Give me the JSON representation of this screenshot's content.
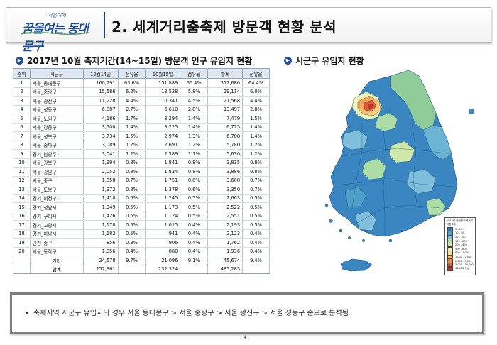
{
  "header": {
    "logo_sub": "서울이메",
    "logo_main": "꿈을여는 동대문구",
    "title": "2. 세계거리춤축제 방문객 현황 분석"
  },
  "left_section": {
    "title": "2017년 10월 축제기간(14~15일) 방문객 인구 유입지 현황"
  },
  "right_section": {
    "title": "시군구 유입지 현황"
  },
  "table": {
    "headers": [
      "순위",
      "시군구",
      "10월14일",
      "점유율",
      "10월15일",
      "점유율",
      "합계",
      "점유율"
    ],
    "rows": [
      [
        "1",
        "서울_동대문구",
        "160,791",
        "63.6%",
        "151,889",
        "65.4%",
        "312,680",
        "64.4%"
      ],
      [
        "2",
        "서울_중랑구",
        "15,586",
        "6.2%",
        "13,528",
        "5.8%",
        "29,114",
        "6.0%"
      ],
      [
        "3",
        "서울_광진구",
        "11,228",
        "4.4%",
        "10,341",
        "4.5%",
        "21,568",
        "4.4%"
      ],
      [
        "4",
        "서울_성동구",
        "6,887",
        "2.7%",
        "6,610",
        "2.8%",
        "13,497",
        "2.8%"
      ],
      [
        "5",
        "서울_노원구",
        "4,186",
        "1.7%",
        "3,294",
        "1.4%",
        "7,479",
        "1.5%"
      ],
      [
        "6",
        "서울_강동구",
        "3,500",
        "1.4%",
        "3,225",
        "1.4%",
        "6,725",
        "1.4%"
      ],
      [
        "7",
        "서울_성북구",
        "3,734",
        "1.5%",
        "2,974",
        "1.3%",
        "6,708",
        "1.4%"
      ],
      [
        "8",
        "서울_송파구",
        "3,089",
        "1.2%",
        "2,691",
        "1.2%",
        "5,780",
        "1.2%"
      ],
      [
        "9",
        "경기_남양주시",
        "3,041",
        "1.2%",
        "2,589",
        "1.1%",
        "5,630",
        "1.2%"
      ],
      [
        "10",
        "서울_강북구",
        "1,994",
        "0.8%",
        "1,841",
        "0.8%",
        "3,835",
        "0.8%"
      ],
      [
        "11",
        "서울_강남구",
        "2,052",
        "0.8%",
        "1,834",
        "0.8%",
        "3,886",
        "0.8%"
      ],
      [
        "12",
        "서울_중구",
        "1,858",
        "0.7%",
        "1,751",
        "0.8%",
        "3,608",
        "0.7%"
      ],
      [
        "13",
        "서울_도봉구",
        "1,972",
        "0.8%",
        "1,378",
        "0.6%",
        "3,350",
        "0.7%"
      ],
      [
        "14",
        "경기_의정부시",
        "1,418",
        "0.6%",
        "1,245",
        "0.5%",
        "2,663",
        "0.5%"
      ],
      [
        "15",
        "경기_성남시",
        "1,349",
        "0.5%",
        "1,173",
        "0.5%",
        "2,522",
        "0.5%"
      ],
      [
        "16",
        "경기_구리시",
        "1,426",
        "0.6%",
        "1,124",
        "0.5%",
        "2,551",
        "0.5%"
      ],
      [
        "17",
        "경기_고양시",
        "1,178",
        "0.5%",
        "1,015",
        "0.4%",
        "2,193",
        "0.5%"
      ],
      [
        "18",
        "경기_하남시",
        "1,182",
        "0.5%",
        "941",
        "0.4%",
        "2,123",
        "0.4%"
      ],
      [
        "19",
        "인천_중구",
        "856",
        "0.3%",
        "906",
        "0.4%",
        "1,762",
        "0.4%"
      ],
      [
        "20",
        "서울_동작구",
        "1,056",
        "0.4%",
        "880",
        "0.4%",
        "1,936",
        "0.4%"
      ],
      [
        "",
        "기타",
        "24,578",
        "9.7%",
        "21,096",
        "9.1%",
        "45,674",
        "9.4%"
      ],
      [
        "",
        "합계",
        "252,961",
        "",
        "232,324",
        "",
        "485,285",
        ""
      ]
    ]
  },
  "map": {
    "legend_title": "2017년 동대문구 세계거리춤축제",
    "legend_items": [
      "0 - 10",
      "10 - 50",
      "50 - 100",
      "100 - 200",
      "200 - 400",
      "400 - 600",
      "600 - 1,000",
      "1,000 - 2,000",
      "2,000 - 5,000",
      "5,000 - 10,000",
      "10,000 이상"
    ],
    "legend_colors": [
      "#2b83ba",
      "#4f9fcb",
      "#80bfdc",
      "#abdda4",
      "#cfe8a8",
      "#eef5b3",
      "#fee08b",
      "#fdb863",
      "#f68d45",
      "#e3592f",
      "#c9302c"
    ]
  },
  "summary": {
    "text": "축제지역 시군구 유입지의 경우 서울 동대문구 > 서울 중랑구 > 서울 광진구 > 서울 성동구 순으로 분석됨"
  },
  "footer": {
    "page_number": "4"
  }
}
